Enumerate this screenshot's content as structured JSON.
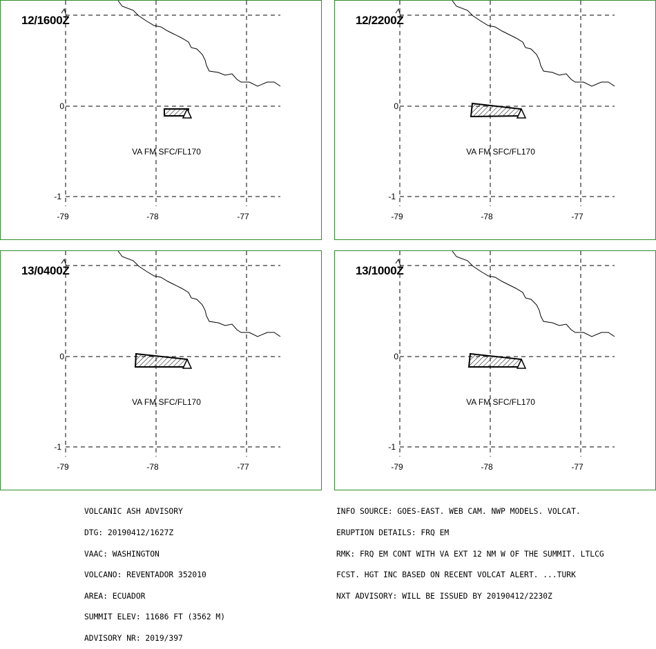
{
  "panels": [
    {
      "time": "12/1600Z",
      "label": "VA FM SFC/FL170"
    },
    {
      "time": "12/2200Z",
      "label": "VA FM SFC/FL170"
    },
    {
      "time": "13/0400Z",
      "label": "VA FM SFC/FL170"
    },
    {
      "time": "13/1000Z",
      "label": "VA FM SFC/FL170"
    }
  ],
  "axes": {
    "lat_labels": [
      "0",
      "-1"
    ],
    "lon_labels": [
      "-79",
      "-78",
      "-77"
    ]
  },
  "advisory_left": [
    "VOLCANIC ASH ADVISORY",
    "DTG: 20190412/1627Z",
    "VAAC: WASHINGTON",
    "VOLCANO: REVENTADOR 352010",
    "AREA: ECUADOR",
    "SUMMIT ELEV: 11686 FT (3562 M)",
    "ADVISORY NR: 2019/397"
  ],
  "advisory_right": [
    "INFO SOURCE: GOES-EAST. WEB CAM. NWP MODELS. VOLCAT.",
    "ERUPTION DETAILS: FRQ EM",
    "RMK: FRQ EM CONT WITH VA EXT 12 NM W OF THE SUMMIT. LTLCG",
    "FCST. HGT INC BASED ON RECENT VOLCAT ALERT. ...TURK",
    "NXT ADVISORY: WILL BE ISSUED BY 20190412/2230Z"
  ],
  "colors": {
    "frame": "#2e8b2e",
    "lines": "#000000",
    "background": "#ffffff"
  }
}
